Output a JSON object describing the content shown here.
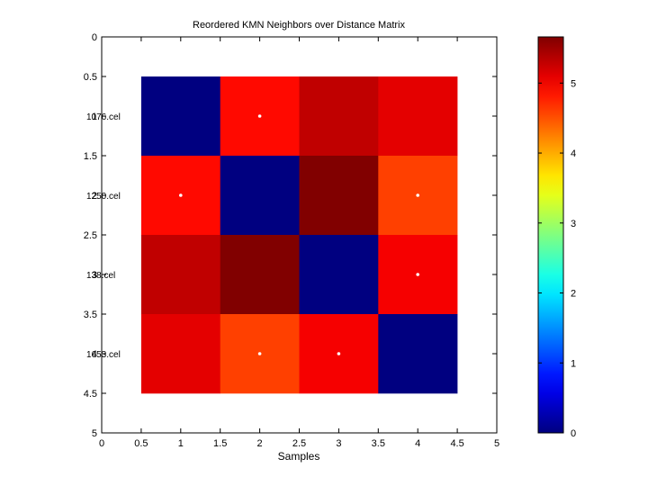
{
  "chart_data": {
    "type": "heatmap",
    "title": "Reordered KMN Neighbors over Distance Matrix",
    "xlabel": "Samples",
    "ylabel": "",
    "xlim": [
      0,
      5
    ],
    "ylim": [
      0,
      5
    ],
    "x_ticks": [
      "0",
      "0.5",
      "1",
      "1.5",
      "2",
      "2.5",
      "3",
      "3.5",
      "4",
      "4.5",
      "5"
    ],
    "y_ticks": [
      "0",
      "0.5",
      "1",
      "1.5",
      "2",
      "2.5",
      "3",
      "3.5",
      "4",
      "4.5",
      "5"
    ],
    "row_labels": [
      "1076.cel",
      "1250.cel",
      "138.cel",
      "1653.cel"
    ],
    "values": [
      [
        0.0,
        4.9,
        5.3,
        5.1
      ],
      [
        4.9,
        0.0,
        5.65,
        4.6
      ],
      [
        5.3,
        5.65,
        0.0,
        5.0
      ],
      [
        5.1,
        4.6,
        5.0,
        0.0
      ]
    ],
    "neighbor_markers": [
      {
        "row": 1,
        "col": 2
      },
      {
        "row": 2,
        "col": 1
      },
      {
        "row": 2,
        "col": 4
      },
      {
        "row": 3,
        "col": 4
      },
      {
        "row": 4,
        "col": 2
      },
      {
        "row": 4,
        "col": 3
      }
    ],
    "colorbar": {
      "colormap": "jet",
      "min": 0,
      "max": 5.66,
      "ticks": [
        "0",
        "1",
        "2",
        "3",
        "4",
        "5"
      ]
    },
    "grid": false
  }
}
